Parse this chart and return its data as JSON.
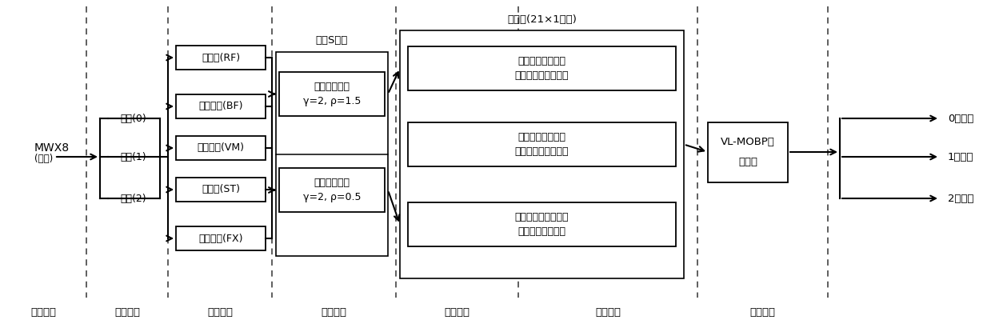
{
  "bg_color": "#ffffff",
  "section_labels": [
    "仪器测量",
    "不同动作",
    "测试肌肉",
    "时频分析",
    "特征提取",
    "网络识别",
    "结果分类"
  ],
  "mwx8_label": "MWX8",
  "mwx8_sublabel": "(测量)",
  "action_labels": [
    "行走(0)",
    "站立(1)",
    "静坐(2)"
  ],
  "muscle_labels": [
    "股直肌(RF)",
    "股二头肌(BF)",
    "股内侧肌(VM)",
    "半腱肌(ST)",
    "膝盖弯曲(FX)"
  ],
  "gst_title": "广义S变换",
  "gst_box1_line1": "时间分辨率高",
  "gst_box1_line2": "γ=2, ρ=1.5",
  "gst_box2_line1": "频率分辨率高",
  "gst_box2_line2": "γ=2, ρ=0.5",
  "feature_title": "特征值(21×1矩阵)",
  "feature_box1_line1": "时域累计特性曲线",
  "feature_box1_line2": "幅值的均值和标准差",
  "feature_box2_line1": "频域累计特性曲线",
  "feature_box2_line2": "幅值的均值和标准差",
  "feature_box3_line1": "膝盖弯曲度曲线的第",
  "feature_box3_line2": "一个取值的绝对值",
  "nn_box_line1": "VL-MOBP神",
  "nn_box_line2": "经网络",
  "result_labels": [
    "0：行走",
    "1：站立",
    "2：静坐"
  ],
  "col_sep_x": [
    108,
    210,
    340,
    495,
    648,
    872,
    1035
  ],
  "fig_w": 12.39,
  "fig_h": 4.05,
  "dpi": 100
}
